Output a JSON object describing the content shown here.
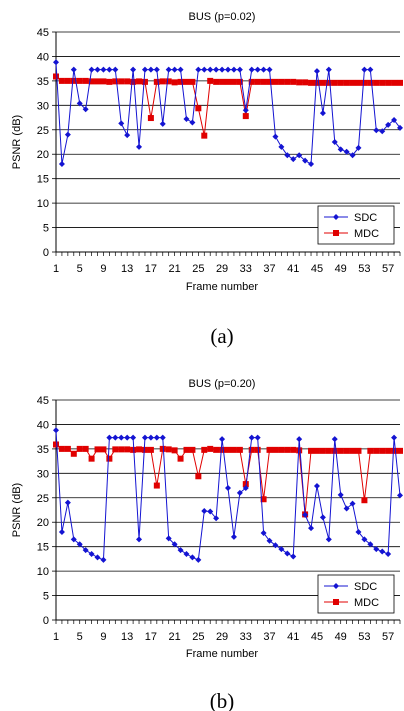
{
  "chart_data": [
    {
      "type": "line",
      "title": "BUS (p=0.02)",
      "xlabel": "Frame number",
      "ylabel": "PSNR (dB)",
      "caption": "(a)",
      "ylim": [
        0,
        45
      ],
      "yticks": [
        0,
        5,
        10,
        15,
        20,
        25,
        30,
        35,
        40,
        45
      ],
      "xlim": [
        1,
        59
      ],
      "xticks": [
        1,
        5,
        9,
        13,
        17,
        21,
        25,
        29,
        33,
        37,
        41,
        45,
        49,
        53,
        57
      ],
      "grid": "horizontal",
      "legend": "bottom-right",
      "x": [
        1,
        2,
        3,
        4,
        5,
        6,
        7,
        8,
        9,
        10,
        11,
        12,
        13,
        14,
        15,
        16,
        17,
        18,
        19,
        20,
        21,
        22,
        23,
        24,
        25,
        26,
        27,
        28,
        29,
        30,
        31,
        32,
        33,
        34,
        35,
        36,
        37,
        38,
        39,
        40,
        41,
        42,
        43,
        44,
        45,
        46,
        47,
        48,
        49,
        50,
        51,
        52,
        53,
        54,
        55,
        56,
        57,
        58,
        59
      ],
      "series": [
        {
          "name": "SDC",
          "color": "#1414d2",
          "marker": "diamond",
          "values": [
            38.8,
            18.0,
            24.0,
            37.3,
            30.4,
            29.2,
            37.3,
            37.3,
            37.3,
            37.3,
            37.3,
            26.3,
            23.9,
            37.3,
            21.5,
            37.3,
            37.3,
            37.3,
            26.2,
            37.3,
            37.3,
            37.3,
            27.2,
            26.5,
            37.3,
            37.3,
            37.3,
            37.3,
            37.3,
            37.3,
            37.3,
            37.3,
            29.0,
            37.3,
            37.3,
            37.3,
            37.3,
            23.6,
            21.5,
            19.8,
            19.0,
            19.8,
            18.7,
            18.0,
            37.0,
            28.4,
            37.3,
            22.5,
            21.0,
            20.5,
            19.8,
            21.3,
            37.3,
            37.3,
            24.9,
            24.7,
            26.0,
            27.0,
            25.4
          ]
        },
        {
          "name": "MDC",
          "color": "#e00000",
          "marker": "square",
          "values": [
            35.9,
            35.0,
            35.0,
            35.0,
            35.0,
            35.0,
            34.9,
            34.9,
            34.9,
            34.8,
            34.9,
            34.9,
            34.9,
            34.8,
            34.9,
            34.8,
            27.4,
            34.8,
            34.9,
            34.9,
            34.7,
            34.8,
            34.8,
            34.8,
            29.4,
            23.8,
            35.0,
            34.8,
            34.8,
            34.8,
            34.8,
            34.8,
            27.8,
            34.8,
            34.8,
            34.8,
            34.8,
            34.8,
            34.8,
            34.8,
            34.8,
            34.7,
            34.7,
            34.6,
            34.6,
            34.6,
            34.6,
            34.6,
            34.6,
            34.6,
            34.6,
            34.6,
            34.6,
            34.6,
            34.6,
            34.6,
            34.6,
            34.6,
            34.6
          ]
        }
      ]
    },
    {
      "type": "line",
      "title": "BUS (p=0.20)",
      "xlabel": "Frame number",
      "ylabel": "PSNR (dB)",
      "caption": "(b)",
      "ylim": [
        0,
        45
      ],
      "yticks": [
        0,
        5,
        10,
        15,
        20,
        25,
        30,
        35,
        40,
        45
      ],
      "xlim": [
        1,
        59
      ],
      "xticks": [
        1,
        5,
        9,
        13,
        17,
        21,
        25,
        29,
        33,
        37,
        41,
        45,
        49,
        53,
        57
      ],
      "grid": "horizontal",
      "legend": "bottom-right",
      "x": [
        1,
        2,
        3,
        4,
        5,
        6,
        7,
        8,
        9,
        10,
        11,
        12,
        13,
        14,
        15,
        16,
        17,
        18,
        19,
        20,
        21,
        22,
        23,
        24,
        25,
        26,
        27,
        28,
        29,
        30,
        31,
        32,
        33,
        34,
        35,
        36,
        37,
        38,
        39,
        40,
        41,
        42,
        43,
        44,
        45,
        46,
        47,
        48,
        49,
        50,
        51,
        52,
        53,
        54,
        55,
        56,
        57,
        58,
        59
      ],
      "series": [
        {
          "name": "SDC",
          "color": "#1414d2",
          "marker": "diamond",
          "values": [
            38.8,
            18.0,
            24.0,
            16.5,
            15.5,
            14.3,
            13.5,
            12.8,
            12.3,
            37.3,
            37.3,
            37.3,
            37.3,
            37.3,
            16.5,
            37.3,
            37.3,
            37.3,
            37.3,
            16.7,
            15.5,
            14.3,
            13.5,
            12.8,
            12.3,
            22.3,
            22.2,
            20.8,
            37.0,
            27.0,
            17.0,
            26.0,
            27.0,
            37.3,
            37.3,
            17.8,
            16.2,
            15.3,
            14.5,
            13.6,
            13.0,
            37.0,
            21.5,
            18.8,
            27.4,
            21.0,
            16.5,
            37.0,
            25.6,
            22.8,
            23.8,
            18.0,
            16.5,
            15.5,
            14.5,
            14.0,
            13.5,
            37.3,
            25.5
          ]
        },
        {
          "name": "MDC",
          "color": "#e00000",
          "marker": "square",
          "values": [
            35.9,
            35.0,
            35.0,
            34.0,
            35.0,
            35.0,
            33.0,
            34.9,
            34.9,
            33.0,
            34.9,
            34.9,
            34.9,
            34.8,
            34.9,
            34.8,
            34.8,
            27.5,
            35.0,
            34.9,
            34.7,
            33.0,
            34.8,
            34.8,
            29.4,
            34.8,
            35.0,
            34.8,
            34.8,
            34.8,
            34.8,
            34.8,
            27.8,
            34.8,
            34.8,
            24.7,
            34.8,
            34.8,
            34.8,
            34.8,
            34.8,
            34.7,
            21.6,
            34.6,
            34.6,
            34.6,
            34.6,
            34.6,
            34.6,
            34.6,
            34.6,
            34.6,
            24.5,
            34.6,
            34.6,
            34.6,
            34.6,
            34.6,
            34.6
          ]
        }
      ]
    }
  ]
}
